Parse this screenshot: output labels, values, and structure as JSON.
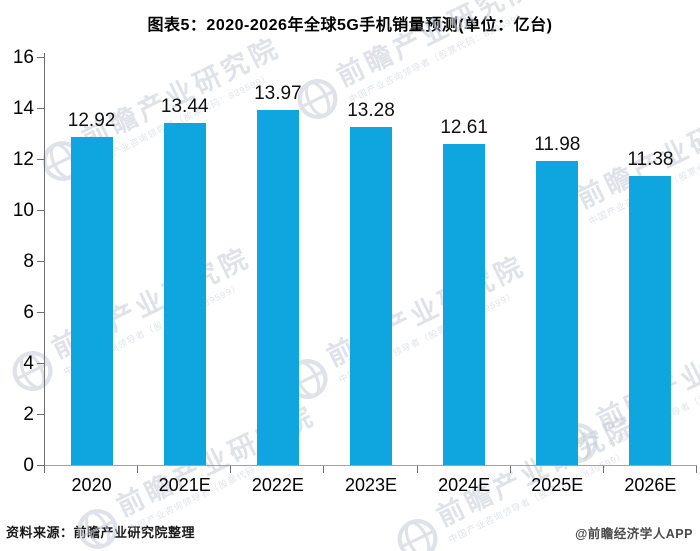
{
  "title": "图表5：2020-2026年全球5G手机销量预测(单位：亿台)",
  "footer": {
    "source": "资料来源：前瞻产业研究院整理",
    "credit": "@前瞻经济学人APP"
  },
  "watermark": {
    "main": "前瞻产业研究院",
    "sub": "中国产业咨询领导者（股票代码：839599）"
  },
  "chart_data": {
    "type": "bar",
    "title": "图表5：2020-2026年全球5G手机销量预测(单位：亿台)",
    "unit": "亿台",
    "categories": [
      "2020",
      "2021E",
      "2022E",
      "2023E",
      "2024E",
      "2025E",
      "2026E"
    ],
    "values": [
      12.92,
      13.44,
      13.97,
      13.28,
      12.61,
      11.98,
      11.38
    ],
    "xlabel": "",
    "ylabel": "",
    "ylim": [
      0,
      16
    ],
    "yticks": [
      0,
      2,
      4,
      6,
      8,
      10,
      12,
      14,
      16
    ],
    "bar_color": "#0fa6e0",
    "grid": false,
    "legend": false
  }
}
